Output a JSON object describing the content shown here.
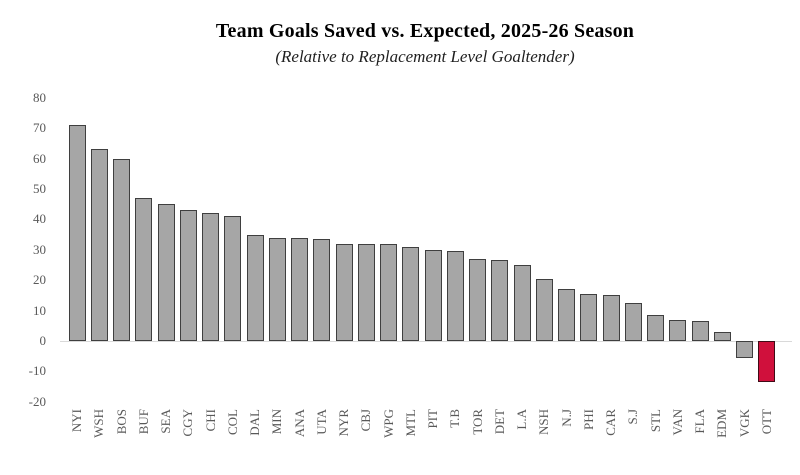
{
  "chart_data": {
    "type": "bar",
    "title": "Team Goals Saved vs. Expected, 2025-26 Season",
    "subtitle": "(Relative to Replacement Level Goaltender)",
    "categories": [
      "NYI",
      "WSH",
      "BOS",
      "BUF",
      "SEA",
      "CGY",
      "CHI",
      "COL",
      "DAL",
      "MIN",
      "ANA",
      "UTA",
      "NYR",
      "CBJ",
      "WPG",
      "MTL",
      "PIT",
      "T.B",
      "TOR",
      "DET",
      "L.A",
      "NSH",
      "N.J",
      "PHI",
      "CAR",
      "S.J",
      "STL",
      "VAN",
      "FLA",
      "EDM",
      "VGK",
      "OTT"
    ],
    "values": [
      71,
      63,
      60,
      47,
      45,
      43,
      42,
      41,
      35,
      34,
      34,
      33.5,
      32,
      32,
      32,
      31,
      30,
      29.5,
      27,
      26.5,
      25,
      20.5,
      17,
      15.5,
      15,
      12.5,
      8.5,
      7,
      6.5,
      3,
      -5.5,
      -13.5
    ],
    "highlight_category": "OTT",
    "xlabel": "",
    "ylabel": "",
    "ylim": [
      -20,
      80
    ],
    "yticks": [
      80,
      70,
      60,
      50,
      40,
      30,
      20,
      10,
      0,
      -10,
      -20
    ],
    "grid": false,
    "legend": false,
    "colors": {
      "bar": "#a6a6a6",
      "bar_border": "#3f3f3f",
      "highlight": "#d0103c",
      "highlight_border": "#3f0b16",
      "axis_line": "#d9d9d9",
      "tick_label": "#595959"
    }
  }
}
